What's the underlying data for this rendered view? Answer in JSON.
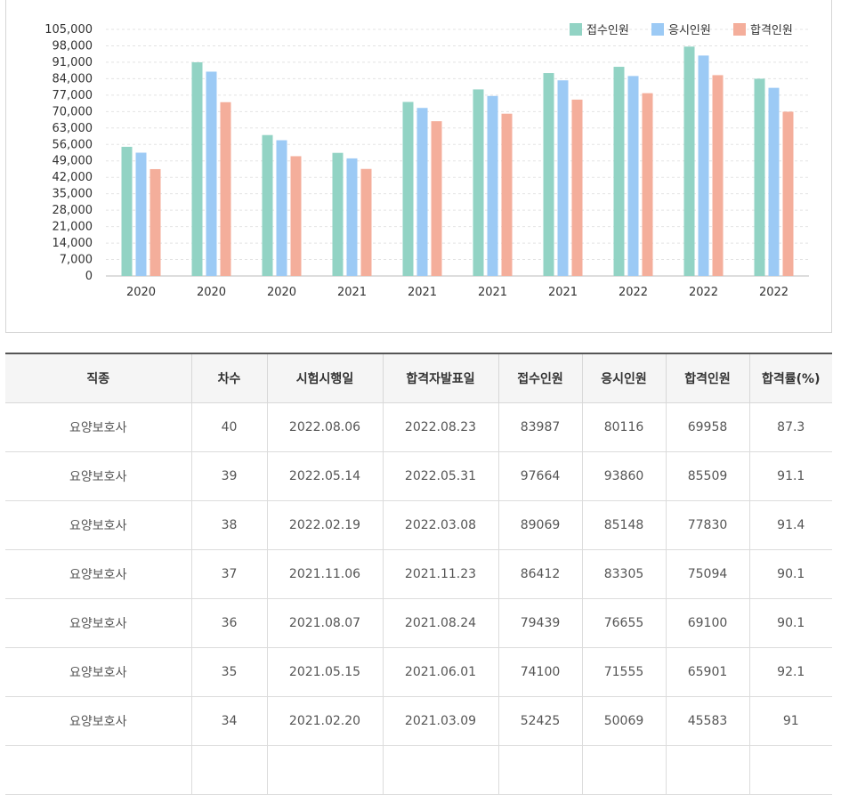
{
  "chart_data": {
    "type": "bar",
    "categories": [
      "2020",
      "2020",
      "2020",
      "2021",
      "2021",
      "2021",
      "2021",
      "2022",
      "2022",
      "2022"
    ],
    "series": [
      {
        "name": "접수인원",
        "color": "#92d3c4",
        "values": [
          55000,
          91000,
          60000,
          52425,
          74100,
          79439,
          86412,
          89069,
          97664,
          83987
        ]
      },
      {
        "name": "응시인원",
        "color": "#9ccaf5",
        "values": [
          52500,
          87000,
          57800,
          50069,
          71555,
          76655,
          83305,
          85148,
          93860,
          80116
        ]
      },
      {
        "name": "합격인원",
        "color": "#f4ae9b",
        "values": [
          45500,
          74000,
          51000,
          45583,
          65901,
          69100,
          75094,
          77830,
          85509,
          69958
        ]
      }
    ],
    "yticks": [
      0,
      7000,
      14000,
      21000,
      28000,
      35000,
      42000,
      49000,
      56000,
      63000,
      70000,
      77000,
      84000,
      91000,
      98000,
      105000
    ],
    "ylim": [
      0,
      105000
    ],
    "grid": true,
    "legend": "top-right"
  },
  "table": {
    "headers": [
      "직종",
      "차수",
      "시험시행일",
      "합격자발표일",
      "접수인원",
      "응시인원",
      "합격인원",
      "합격률(%)"
    ],
    "rows": [
      [
        "요양보호사",
        "40",
        "2022.08.06",
        "2022.08.23",
        "83987",
        "80116",
        "69958",
        "87.3"
      ],
      [
        "요양보호사",
        "39",
        "2022.05.14",
        "2022.05.31",
        "97664",
        "93860",
        "85509",
        "91.1"
      ],
      [
        "요양보호사",
        "38",
        "2022.02.19",
        "2022.03.08",
        "89069",
        "85148",
        "77830",
        "91.4"
      ],
      [
        "요양보호사",
        "37",
        "2021.11.06",
        "2021.11.23",
        "86412",
        "83305",
        "75094",
        "90.1"
      ],
      [
        "요양보호사",
        "36",
        "2021.08.07",
        "2021.08.24",
        "79439",
        "76655",
        "69100",
        "90.1"
      ],
      [
        "요양보호사",
        "35",
        "2021.05.15",
        "2021.06.01",
        "74100",
        "71555",
        "65901",
        "92.1"
      ],
      [
        "요양보호사",
        "34",
        "2021.02.20",
        "2021.03.09",
        "52425",
        "50069",
        "45583",
        "91"
      ],
      [
        "",
        "",
        "",
        "",
        "",
        "",
        "",
        ""
      ]
    ]
  }
}
